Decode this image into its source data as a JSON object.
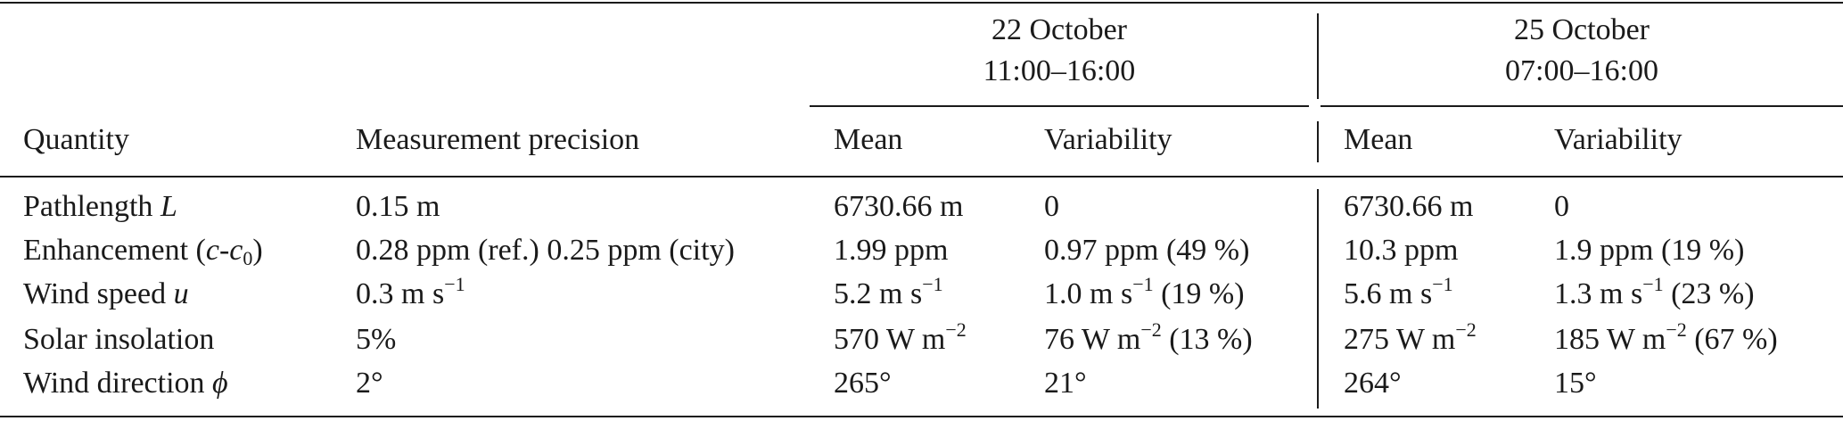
{
  "table": {
    "groups": [
      {
        "date": "22 October",
        "time": "11:00–16:00"
      },
      {
        "date": "25 October",
        "time": "07:00–16:00"
      }
    ],
    "headers": {
      "quantity": "Quantity",
      "precision": "Measurement precision",
      "mean": "Mean",
      "variability": "Variability"
    },
    "rows": [
      {
        "quantity": {
          "pre": "Pathlength ",
          "italic": "L",
          "post": ""
        },
        "precision": "0.15 m",
        "oct22_mean": "6730.66 m",
        "oct22_var": "0",
        "oct25_mean": "6730.66 m",
        "oct25_var": "0"
      },
      {
        "quantity": {
          "pre": "Enhancement (",
          "italic": "c",
          "mid": "-",
          "italic2": "c",
          "sub": "0",
          "post": ")"
        },
        "precision": "0.28 ppm (ref.) 0.25 ppm (city)",
        "oct22_mean": "1.99 ppm",
        "oct22_var": "0.97 ppm (49 %)",
        "oct25_mean": "10.3 ppm",
        "oct25_var": "1.9 ppm (19 %)"
      },
      {
        "quantity": {
          "pre": "Wind speed ",
          "italic": "u",
          "post": ""
        },
        "precision": {
          "base": "0.3 m s",
          "sup": "−1",
          "after": ""
        },
        "oct22_mean": {
          "base": "5.2 m s",
          "sup": "−1",
          "after": ""
        },
        "oct22_var": {
          "base": "1.0 m s",
          "sup": "−1",
          "after": " (19 %)"
        },
        "oct25_mean": {
          "base": "5.6 m s",
          "sup": "−1",
          "after": ""
        },
        "oct25_var": {
          "base": "1.3 m s",
          "sup": "−1",
          "after": " (23 %)"
        }
      },
      {
        "quantity": {
          "pre": "Solar insolation",
          "italic": "",
          "post": ""
        },
        "precision": "5%",
        "oct22_mean": {
          "base": "570 W m",
          "sup": "−2",
          "after": ""
        },
        "oct22_var": {
          "base": "76 W m",
          "sup": "−2",
          "after": " (13 %)"
        },
        "oct25_mean": {
          "base": "275 W m",
          "sup": "−2",
          "after": ""
        },
        "oct25_var": {
          "base": "185 W m",
          "sup": "−2",
          "after": " (67 %)"
        }
      },
      {
        "quantity": {
          "pre": "Wind direction ",
          "italic": "ϕ",
          "post": ""
        },
        "precision": "2°",
        "oct22_mean": "265°",
        "oct22_var": "21°",
        "oct25_mean": "264°",
        "oct25_var": "15°"
      }
    ]
  }
}
